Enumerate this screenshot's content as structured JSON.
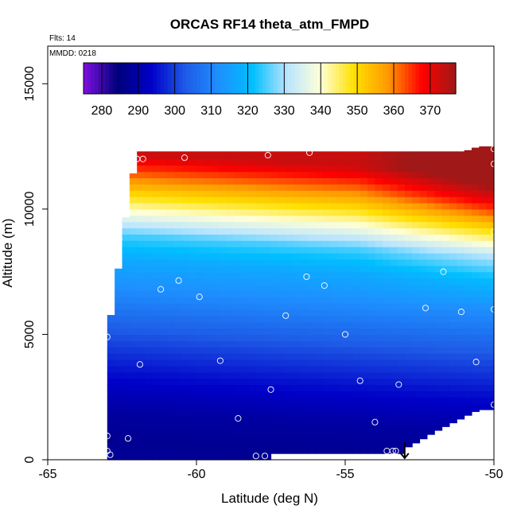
{
  "chart_data": {
    "type": "heatmap",
    "title": "ORCAS RF14 theta_atm_FMPD",
    "flights_label": "Flts: 14",
    "date_label": "MMDD: 0218",
    "xlabel": "Latitude (deg N)",
    "ylabel": "Altitude (m)",
    "xlim": [
      -65,
      -50
    ],
    "ylim": [
      0,
      16500
    ],
    "x_ticks": [
      -65,
      -60,
      -55,
      -50
    ],
    "x_tick_labels": [
      "-65",
      "-60",
      "-55",
      "-50"
    ],
    "y_ticks": [
      0,
      5000,
      10000,
      15000
    ],
    "y_tick_labels": [
      "0",
      "5000",
      "10000",
      "15000"
    ],
    "colorbar": {
      "min": 275,
      "max": 377,
      "ticks": [
        280,
        290,
        300,
        310,
        320,
        330,
        340,
        350,
        360,
        370
      ],
      "tick_labels": [
        "280",
        "290",
        "300",
        "310",
        "320",
        "330",
        "340",
        "350",
        "360",
        "370"
      ],
      "colors": [
        "#8010e0",
        "#00007a",
        "#0000c8",
        "#1e5ae6",
        "#1e90ff",
        "#00bfff",
        "#b8e4ff",
        "#ffffd8",
        "#ffe000",
        "#ff9900",
        "#ff0000",
        "#a01818"
      ]
    },
    "flight_direction_marker": {
      "lat": -53,
      "alt": 0,
      "symbol": "down-arrow"
    },
    "coverage": [
      {
        "lat": -63.0,
        "bottom": 0,
        "top": 4900
      },
      {
        "lat": -62.7,
        "bottom": 0,
        "top": 7000
      },
      {
        "lat": -62.4,
        "bottom": 0,
        "top": 9500
      },
      {
        "lat": -62.0,
        "bottom": 0,
        "top": 12300
      },
      {
        "lat": -57.5,
        "bottom": 0,
        "top": 12300
      },
      {
        "lat": -57.4,
        "bottom": 250,
        "top": 12300
      },
      {
        "lat": -53.0,
        "bottom": 250,
        "top": 12300
      },
      {
        "lat": -52.9,
        "bottom": 500,
        "top": 12300
      },
      {
        "lat": -52.5,
        "bottom": 750,
        "top": 12300
      },
      {
        "lat": -52.0,
        "bottom": 1100,
        "top": 12300
      },
      {
        "lat": -51.5,
        "bottom": 1400,
        "top": 12300
      },
      {
        "lat": -51.0,
        "bottom": 1700,
        "top": 12300
      },
      {
        "lat": -50.5,
        "bottom": 2000,
        "top": 12500
      },
      {
        "lat": -50.0,
        "bottom": 2000,
        "top": 12500
      }
    ],
    "theta_profile": [
      {
        "alt": 0,
        "theta": 288
      },
      {
        "alt": 800,
        "theta": 287
      },
      {
        "alt": 2000,
        "theta": 289
      },
      {
        "alt": 3500,
        "theta": 295
      },
      {
        "alt": 5000,
        "theta": 302
      },
      {
        "alt": 6500,
        "theta": 310
      },
      {
        "alt": 8000,
        "theta": 317
      },
      {
        "alt": 9000,
        "theta": 325
      },
      {
        "alt": 9700,
        "theta": 336
      },
      {
        "alt": 10500,
        "theta": 348
      },
      {
        "alt": 11300,
        "theta": 360
      },
      {
        "alt": 12300,
        "theta": 373
      }
    ],
    "samples": [
      {
        "lat": -63.0,
        "alt": 4900
      },
      {
        "lat": -62.6,
        "alt": 8800
      },
      {
        "lat": -62.0,
        "alt": 12000
      },
      {
        "lat": -61.8,
        "alt": 12000
      },
      {
        "lat": -60.4,
        "alt": 12050
      },
      {
        "lat": -57.6,
        "alt": 12150
      },
      {
        "lat": -56.2,
        "alt": 12250
      },
      {
        "lat": -50.0,
        "alt": 12400
      },
      {
        "lat": -50.0,
        "alt": 11800
      },
      {
        "lat": -50.0,
        "alt": 9100
      },
      {
        "lat": -51.7,
        "alt": 7500
      },
      {
        "lat": -56.3,
        "alt": 7300
      },
      {
        "lat": -60.6,
        "alt": 7150
      },
      {
        "lat": -55.7,
        "alt": 6950
      },
      {
        "lat": -61.2,
        "alt": 6800
      },
      {
        "lat": -59.9,
        "alt": 6500
      },
      {
        "lat": -52.3,
        "alt": 6050
      },
      {
        "lat": -51.1,
        "alt": 5900
      },
      {
        "lat": -50.0,
        "alt": 6000
      },
      {
        "lat": -57.0,
        "alt": 5750
      },
      {
        "lat": -55.0,
        "alt": 5000
      },
      {
        "lat": -59.2,
        "alt": 3950
      },
      {
        "lat": -50.6,
        "alt": 3900
      },
      {
        "lat": -61.9,
        "alt": 3800
      },
      {
        "lat": -54.5,
        "alt": 3150
      },
      {
        "lat": -53.2,
        "alt": 3000
      },
      {
        "lat": -57.5,
        "alt": 2800
      },
      {
        "lat": -50.0,
        "alt": 2200
      },
      {
        "lat": -58.6,
        "alt": 1650
      },
      {
        "lat": -54.0,
        "alt": 1500
      },
      {
        "lat": -63.0,
        "alt": 950
      },
      {
        "lat": -62.3,
        "alt": 850
      },
      {
        "lat": -63.0,
        "alt": 350
      },
      {
        "lat": -62.9,
        "alt": 200
      },
      {
        "lat": -58.0,
        "alt": 150
      },
      {
        "lat": -57.7,
        "alt": 150
      },
      {
        "lat": -53.6,
        "alt": 350
      },
      {
        "lat": -53.4,
        "alt": 350
      },
      {
        "lat": -53.3,
        "alt": 350
      }
    ]
  }
}
